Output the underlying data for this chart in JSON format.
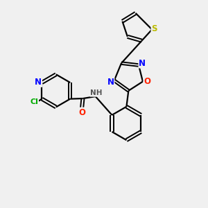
{
  "background_color": "#f0f0f0",
  "bond_color": "#000000",
  "atom_colors": {
    "N": "#0000ff",
    "O": "#ff2200",
    "S": "#bbbb00",
    "Cl": "#00aa00",
    "H": "#555555",
    "C": "#000000"
  },
  "lw_single": 1.6,
  "lw_double": 1.4,
  "double_sep": 0.055,
  "font_size": 8.5
}
